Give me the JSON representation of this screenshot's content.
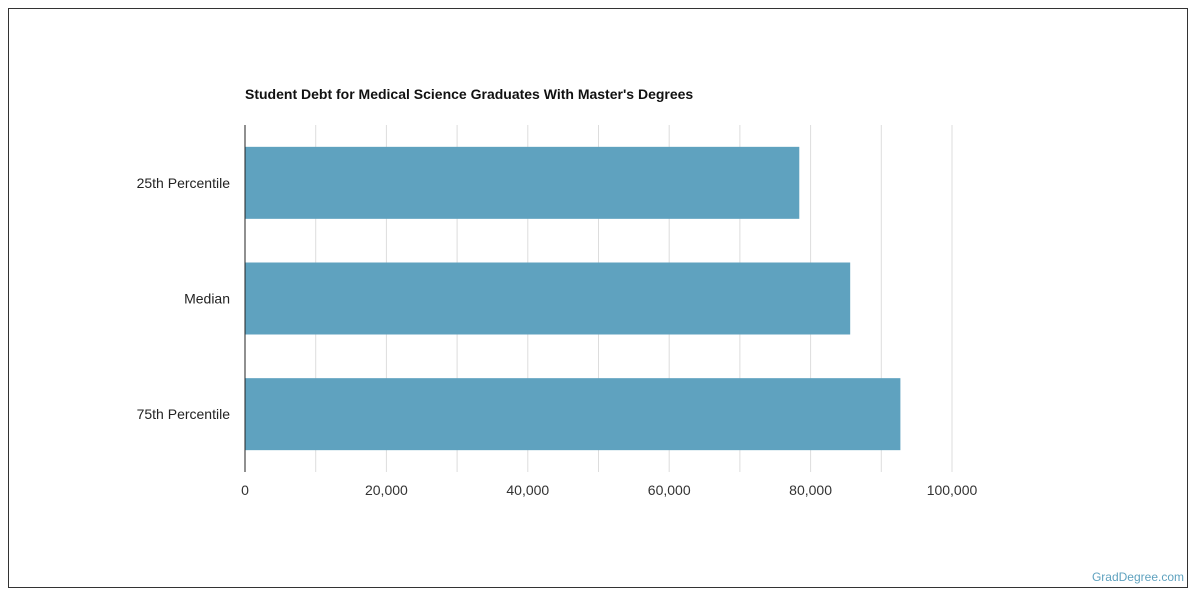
{
  "chart_data": {
    "type": "bar",
    "orientation": "horizontal",
    "title": "Student Debt for Medical Science Graduates With Master's Degrees",
    "categories": [
      "25th Percentile",
      "Median",
      "75th Percentile"
    ],
    "values": [
      78400,
      85600,
      92700
    ],
    "xlim": [
      0,
      100000
    ],
    "x_ticks": [
      0,
      20000,
      40000,
      60000,
      80000,
      100000
    ],
    "x_tick_labels": [
      "0",
      "20,000",
      "40,000",
      "60,000",
      "80,000",
      "100,000"
    ],
    "grid": true,
    "bar_color": "#5fa2bf"
  },
  "watermark": "GradDegree.com"
}
